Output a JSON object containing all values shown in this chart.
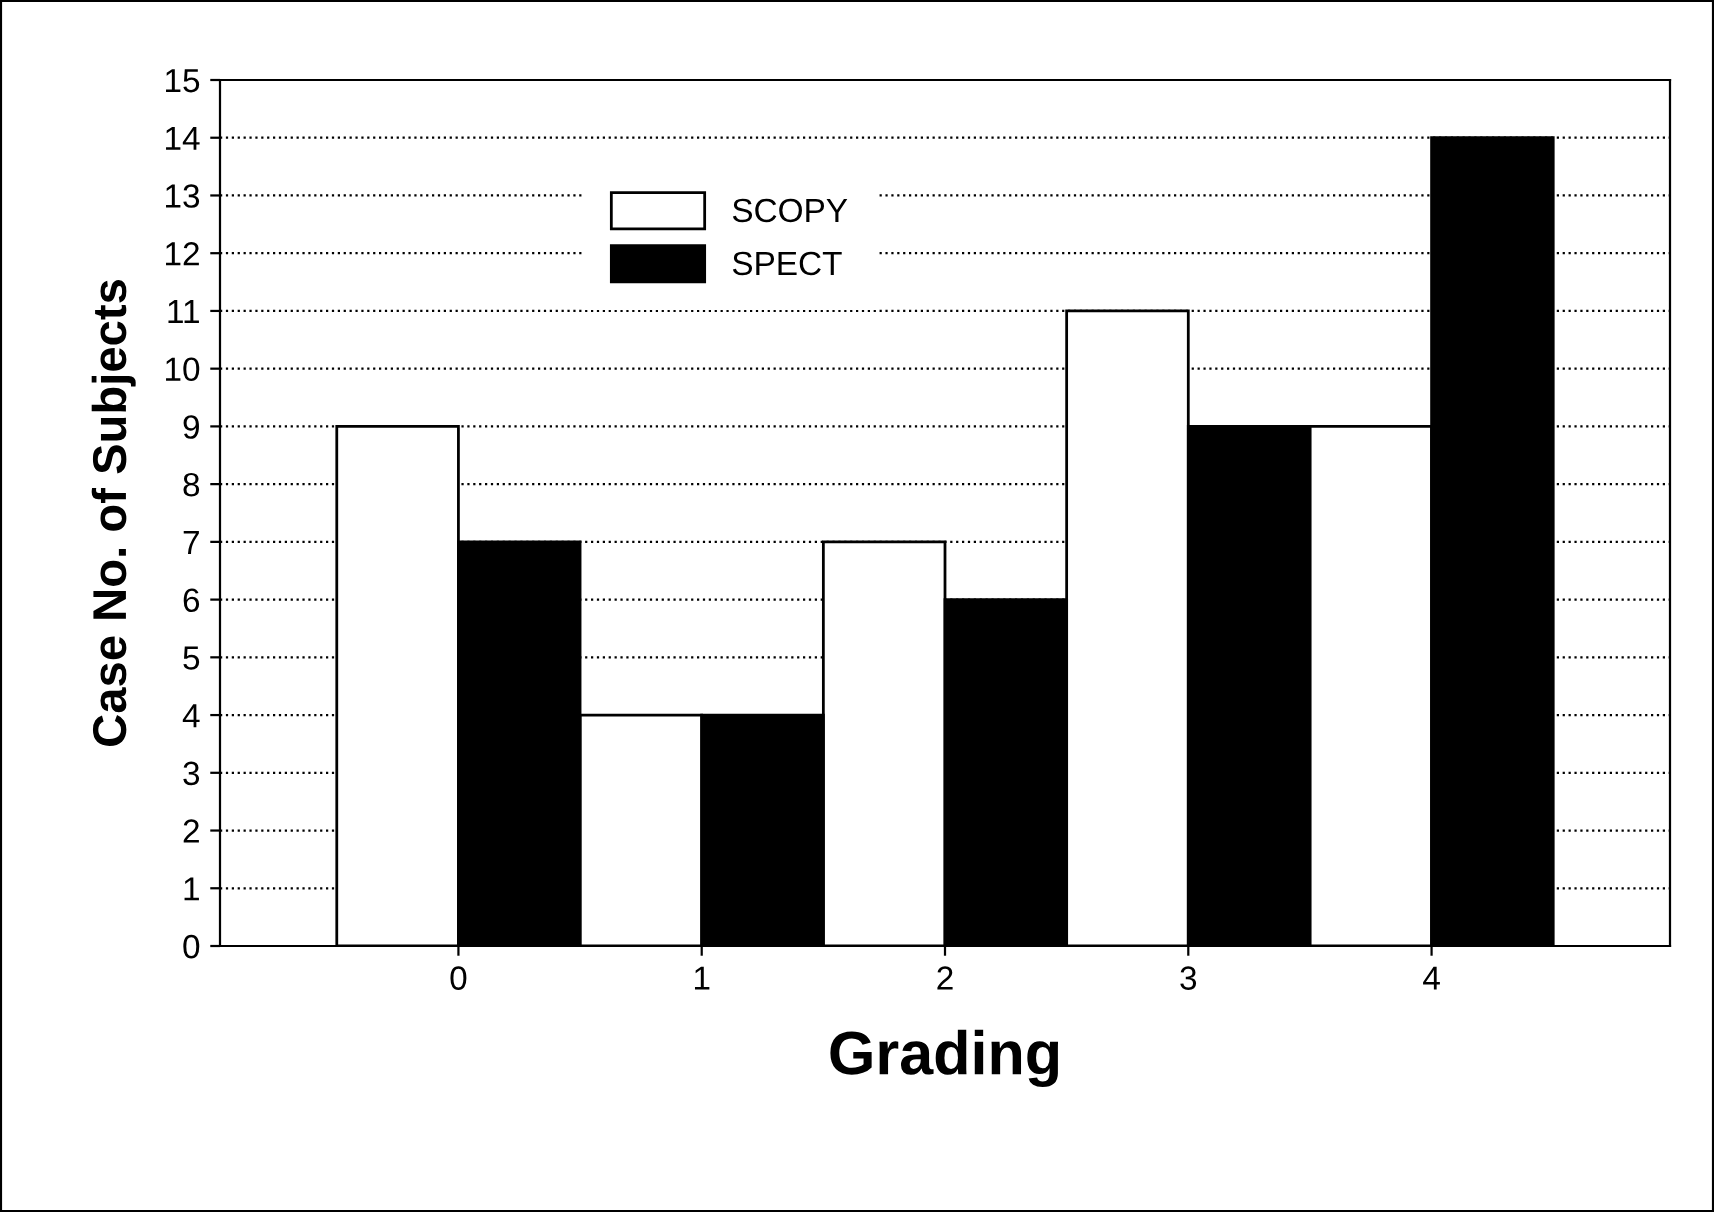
{
  "chart_data": {
    "type": "bar",
    "xlabel": "Grading",
    "ylabel": "Case No. of Subjects",
    "categories": [
      "0",
      "1",
      "2",
      "3",
      "4"
    ],
    "series": [
      {
        "name": "SCOPY",
        "color": "#ffffff",
        "values": [
          9,
          4,
          7,
          11,
          9
        ]
      },
      {
        "name": "SPECT",
        "color": "#000000",
        "values": [
          7,
          4,
          6,
          9,
          14
        ]
      }
    ],
    "ylim": [
      0,
      15
    ],
    "yticks": [
      0,
      1,
      2,
      3,
      4,
      5,
      6,
      7,
      8,
      9,
      10,
      11,
      12,
      13,
      14,
      15
    ],
    "grid": "y",
    "legend": "top left"
  }
}
